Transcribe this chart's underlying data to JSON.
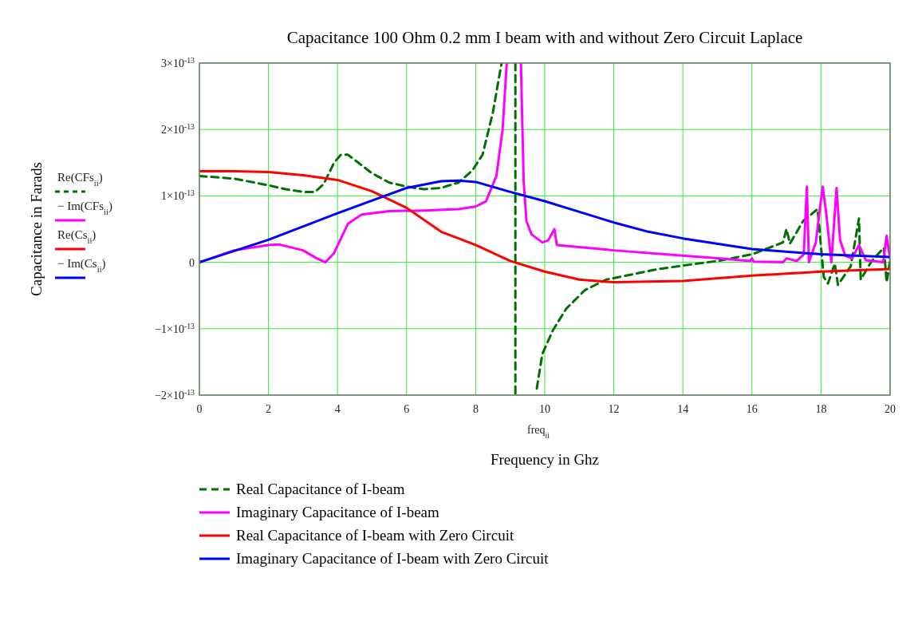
{
  "chart_data": {
    "type": "line",
    "title": "Capacitance 100 Ohm 0.2 mm I beam with and without Zero Circuit Laplace",
    "xlabel": "Frequency in Ghz",
    "xlim": [
      0,
      20
    ],
    "xticks": [
      0,
      2,
      4,
      6,
      8,
      10,
      12,
      14,
      16,
      18,
      20
    ],
    "ylim": [
      -2e-13,
      3e-13
    ],
    "yticks": [
      {
        "value": -2e-13,
        "label": "−2×10$^{-13}$"
      },
      {
        "value": -1e-13,
        "label": "−1×10$^{-13}$"
      },
      0,
      {
        "value": 1e-13,
        "label": "1×10$^{-13}$"
      },
      {
        "value": 2e-13,
        "label": "2×10$^{-13}$"
      },
      {
        "value": 3e-13,
        "label": "3×10$^{-13}$"
      }
    ],
    "grid": true,
    "legend": "bottom",
    "marker": "none",
    "annotations": [
      "Re(CFs$_{ii}$)",
      "− Im(CFs$_{ii}$)",
      "Re(Cs$_{ii}$)",
      "− Im(Cs$_{ii}$)",
      "freq$_{ii}$",
      "Capacitance in Farads"
    ],
    "series": [
      {
        "name": "Real Capacitance of I-beam",
        "color": "#007000",
        "line_style": "dashed",
        "x": [
          0,
          1,
          2,
          2.5,
          3,
          3.35,
          3.6,
          3.9,
          4.1,
          4.3,
          4.6,
          5,
          5.5,
          6,
          6.5,
          7,
          7.5,
          7.9,
          8.2,
          8.5,
          8.75,
          9.0,
          9.15,
          9.15,
          9.4,
          9.77,
          9.93,
          10.24,
          10.62,
          11.16,
          11.78,
          12.55,
          13.3,
          14,
          15,
          16,
          16.5,
          16.9,
          17.0,
          17.1,
          17.48,
          17.9,
          18.08,
          18.2,
          18.4,
          18.49,
          18.86,
          19.1,
          19.15,
          19.47,
          19.82,
          19.9,
          20
        ],
        "values": [
          1.3e-13,
          1.26e-13,
          1.16e-13,
          1.1e-13,
          1.06e-13,
          1.06e-13,
          1.18e-13,
          1.5e-13,
          1.62e-13,
          1.62e-13,
          1.5e-13,
          1.34e-13,
          1.2e-13,
          1.14e-13,
          1.1e-13,
          1.12e-13,
          1.2e-13,
          1.38e-13,
          1.62e-13,
          2.26e-13,
          3e-13,
          null,
          3e-13,
          -2e-13,
          null,
          -1.9e-13,
          -1.38e-13,
          -1.02e-13,
          -7e-14,
          -4.2e-14,
          -2.6e-14,
          -1.8e-14,
          -1e-14,
          -5e-15,
          2e-15,
          1.2e-14,
          2.2e-14,
          3e-14,
          5e-14,
          2.8e-14,
          6.2e-14,
          8e-14,
          -2.2e-14,
          -3.2e-14,
          -2e-15,
          -3.4e-14,
          -6e-15,
          6.6e-14,
          -2.6e-14,
          2e-15,
          2.2e-14,
          -3e-14,
          2e-15
        ]
      },
      {
        "name": "Imaginary Capacitance of I-beam",
        "color": "#ff00ff",
        "x": [
          0,
          1,
          2,
          2.3,
          3,
          3.4,
          3.65,
          3.9,
          4.3,
          4.7,
          5.5,
          6.5,
          7.5,
          8,
          8.3,
          8.6,
          8.78,
          8.9,
          9.1,
          9.31,
          9.39,
          9.47,
          9.62,
          9.93,
          10.1,
          10.28,
          10.35,
          12,
          14,
          15,
          15.95,
          16,
          16.05,
          16.9,
          17,
          17.3,
          17.5,
          17.59,
          17.65,
          17.85,
          17.95,
          18.05,
          18.15,
          18.3,
          18.45,
          18.55,
          18.7,
          18.9,
          19.1,
          19.3,
          19.8,
          19.9,
          20
        ],
        "values": [
          0,
          1.8e-14,
          2.6e-14,
          2.7e-14,
          1.8e-14,
          6e-15,
          0,
          1.4e-14,
          5.8e-14,
          7.2e-14,
          7.7e-14,
          7.8e-14,
          8e-14,
          8.4e-14,
          9.2e-14,
          1.3e-13,
          2e-13,
          3e-13,
          null,
          3e-13,
          1.22e-13,
          6.2e-14,
          4.2e-14,
          3e-14,
          3.3e-14,
          5e-14,
          2.6e-14,
          1.8e-14,
          1e-14,
          6e-15,
          2e-15,
          6e-15,
          1e-15,
          0,
          6e-15,
          2e-15,
          1.2e-14,
          1.14e-13,
          0,
          3e-14,
          7.4e-14,
          1.14e-13,
          7.4e-14,
          0,
          1.12e-13,
          3.4e-14,
          1e-14,
          6e-15,
          2.6e-14,
          3e-15,
          0,
          4e-14,
          5e-15
        ]
      },
      {
        "name": "Real Capacitance of I-beam with Zero Circuit",
        "color": "#ff0000",
        "x": [
          0,
          1,
          2,
          3,
          4,
          5,
          6,
          7,
          8,
          9,
          10,
          11,
          12,
          13,
          14,
          16,
          18,
          20
        ],
        "values": [
          1.37e-13,
          1.37e-13,
          1.36e-13,
          1.31e-13,
          1.24e-13,
          1.07e-13,
          8.2e-14,
          4.6e-14,
          2.6e-14,
          2e-15,
          -1.4e-14,
          -2.6e-14,
          -3e-14,
          -2.9e-14,
          -2.8e-14,
          -2e-14,
          -1.4e-14,
          -1e-14
        ]
      },
      {
        "name": "Imaginary Capacitance of I-beam with Zero Circuit",
        "color": "#0000ff",
        "x": [
          0,
          2,
          4,
          6,
          7,
          7.5,
          8,
          9,
          10,
          11,
          12,
          13,
          14,
          16,
          18,
          20
        ],
        "values": [
          0,
          3.4e-14,
          7.4e-14,
          1.12e-13,
          1.22e-13,
          1.23e-13,
          1.21e-13,
          1.06e-13,
          9.2e-14,
          7.6e-14,
          6e-14,
          4.6e-14,
          3.6e-14,
          2e-14,
          1.2e-14,
          8e-15
        ]
      }
    ]
  }
}
